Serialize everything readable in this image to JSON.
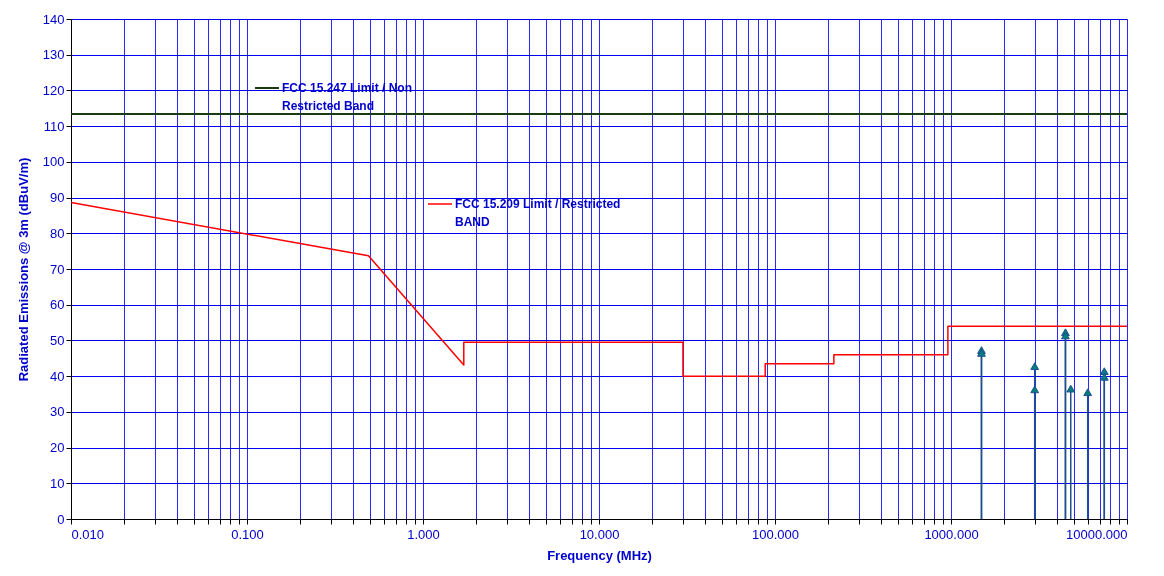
{
  "chart_data": {
    "type": "line",
    "xlabel": "Frequency (MHz)",
    "ylabel": "Radiated Emissions @ 3m (dBuV/m)",
    "log": "x",
    "xlim": [
      0.01,
      10000
    ],
    "ylim": [
      0,
      140
    ],
    "xticks": [
      {
        "value": 0.01,
        "label": "0.010"
      },
      {
        "value": 0.02,
        "label": null
      },
      {
        "value": 0.03,
        "label": null
      },
      {
        "value": 0.04,
        "label": null
      },
      {
        "value": 0.05,
        "label": null
      },
      {
        "value": 0.06,
        "label": null
      },
      {
        "value": 0.07,
        "label": null
      },
      {
        "value": 0.08,
        "label": null
      },
      {
        "value": 0.09,
        "label": null
      },
      {
        "value": 0.1,
        "label": "0.100"
      },
      {
        "value": 0.2,
        "label": null
      },
      {
        "value": 0.3,
        "label": null
      },
      {
        "value": 0.4,
        "label": null
      },
      {
        "value": 0.5,
        "label": null
      },
      {
        "value": 0.6,
        "label": null
      },
      {
        "value": 0.7,
        "label": null
      },
      {
        "value": 0.8,
        "label": null
      },
      {
        "value": 0.9,
        "label": null
      },
      {
        "value": 1,
        "label": "1.000"
      },
      {
        "value": 2,
        "label": null
      },
      {
        "value": 3,
        "label": null
      },
      {
        "value": 4,
        "label": null
      },
      {
        "value": 5,
        "label": null
      },
      {
        "value": 6,
        "label": null
      },
      {
        "value": 7,
        "label": null
      },
      {
        "value": 8,
        "label": null
      },
      {
        "value": 9,
        "label": null
      },
      {
        "value": 10,
        "label": "10.000"
      },
      {
        "value": 20,
        "label": null
      },
      {
        "value": 30,
        "label": null
      },
      {
        "value": 40,
        "label": null
      },
      {
        "value": 50,
        "label": null
      },
      {
        "value": 60,
        "label": null
      },
      {
        "value": 70,
        "label": null
      },
      {
        "value": 80,
        "label": null
      },
      {
        "value": 90,
        "label": null
      },
      {
        "value": 100,
        "label": "100.000"
      },
      {
        "value": 200,
        "label": null
      },
      {
        "value": 300,
        "label": null
      },
      {
        "value": 400,
        "label": null
      },
      {
        "value": 500,
        "label": null
      },
      {
        "value": 600,
        "label": null
      },
      {
        "value": 700,
        "label": null
      },
      {
        "value": 800,
        "label": null
      },
      {
        "value": 900,
        "label": null
      },
      {
        "value": 1000,
        "label": "1000.000"
      },
      {
        "value": 2000,
        "label": null
      },
      {
        "value": 3000,
        "label": null
      },
      {
        "value": 4000,
        "label": null
      },
      {
        "value": 5000,
        "label": null
      },
      {
        "value": 6000,
        "label": null
      },
      {
        "value": 7000,
        "label": null
      },
      {
        "value": 8000,
        "label": null
      },
      {
        "value": 9000,
        "label": null
      },
      {
        "value": 10000,
        "label": "10000.000"
      }
    ],
    "yticks": [
      0,
      10,
      20,
      30,
      40,
      50,
      60,
      70,
      80,
      90,
      100,
      110,
      120,
      130,
      140
    ],
    "grid": true,
    "legend": "top left",
    "series": [
      {
        "name": "FCC 15.247 Limit / Non Restricted Band",
        "type": "line",
        "color": "#1a3a10",
        "x": [
          0.01,
          10000
        ],
        "values": [
          113.4,
          113.4
        ]
      },
      {
        "name": "FCC 15.209 Limit / Restricted BAND",
        "type": "line",
        "color": "#ff0000",
        "x": [
          0.01,
          0.49,
          1.705,
          1.705,
          30,
          30,
          88,
          88,
          216,
          216,
          960,
          960,
          10000
        ],
        "values": [
          88.6,
          73.7,
          43.1,
          49.5,
          49.5,
          40,
          40,
          43.5,
          43.5,
          46,
          46,
          54,
          54
        ]
      },
      {
        "type": "lollipop",
        "marker": "triangle",
        "color": "#1f4f8f",
        "x": [
          1490,
          1490,
          2990,
          2990,
          4470,
          4470,
          4790,
          5980,
          7430,
          7430
        ],
        "values": [
          47.3,
          46.5,
          42.8,
          36.3,
          52.3,
          51.4,
          36.5,
          35.5,
          41.4,
          39.8
        ]
      }
    ]
  }
}
